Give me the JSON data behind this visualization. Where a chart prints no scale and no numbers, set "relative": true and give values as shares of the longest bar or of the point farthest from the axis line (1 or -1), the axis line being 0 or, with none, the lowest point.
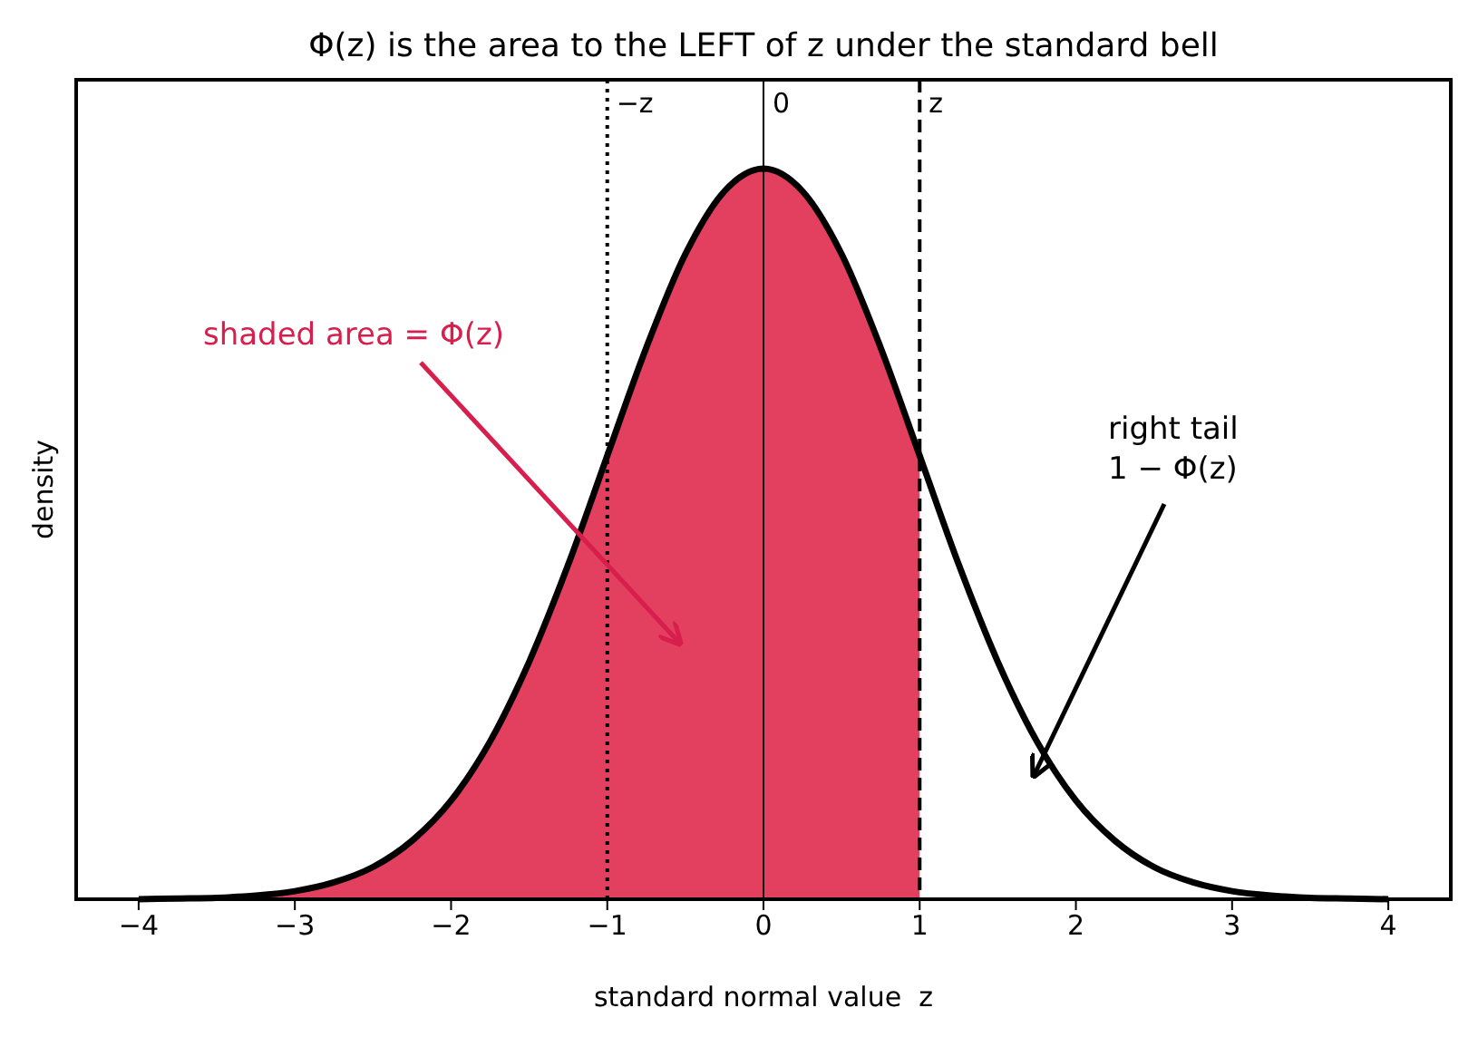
{
  "chart_data": {
    "type": "line",
    "title": "Φ(z) is the area to the LEFT of z under the standard bell",
    "xlabel": "standard normal value  z",
    "ylabel": "density",
    "relative": true,
    "xlim": [
      -4.4,
      4.4
    ],
    "xticks": [
      -4,
      -3,
      -2,
      -1,
      0,
      1,
      2,
      3,
      4
    ],
    "series": [
      {
        "type": "area",
        "color": "#e3405f",
        "x": [
          -4,
          -3.75,
          -3.5,
          -3.25,
          -3,
          -2.75,
          -2.5,
          -2.25,
          -2,
          -1.75,
          -1.5,
          -1.25,
          -1,
          -0.75,
          -0.5,
          -0.25,
          0,
          0.25,
          0.5,
          0.75,
          1
        ],
        "values": [
          0,
          0.001,
          0.002,
          0.005,
          0.011,
          0.023,
          0.044,
          0.08,
          0.135,
          0.216,
          0.325,
          0.458,
          0.607,
          0.755,
          0.883,
          0.969,
          1,
          0.969,
          0.883,
          0.755,
          0.607
        ]
      },
      {
        "type": "line",
        "color": "#000000",
        "x": [
          -4,
          -3.75,
          -3.5,
          -3.25,
          -3,
          -2.75,
          -2.5,
          -2.25,
          -2,
          -1.75,
          -1.5,
          -1.25,
          -1,
          -0.75,
          -0.5,
          -0.25,
          0,
          0.25,
          0.5,
          0.75,
          1,
          1.25,
          1.5,
          1.75,
          2,
          2.25,
          2.5,
          2.75,
          3,
          3.25,
          3.5,
          3.75,
          4
        ],
        "values": [
          0,
          0.001,
          0.002,
          0.005,
          0.011,
          0.023,
          0.044,
          0.08,
          0.135,
          0.216,
          0.325,
          0.458,
          0.607,
          0.755,
          0.883,
          0.969,
          1,
          0.969,
          0.883,
          0.755,
          0.607,
          0.458,
          0.325,
          0.216,
          0.135,
          0.08,
          0.044,
          0.023,
          0.011,
          0.005,
          0.002,
          0.001,
          0
        ]
      }
    ],
    "ref_lines": [
      {
        "axis": "x",
        "value": -1,
        "label": "−z",
        "line_style": "dotted",
        "color": "#000000"
      },
      {
        "axis": "x",
        "value": 0,
        "label": "0",
        "line_style": "solid",
        "color": "#000000"
      },
      {
        "axis": "x",
        "value": 1,
        "label": "z",
        "line_style": "dashed",
        "color": "#000000"
      }
    ],
    "annotations": [
      "shaded area = Φ(z)",
      "right tail\n1 − Φ(z)"
    ]
  }
}
